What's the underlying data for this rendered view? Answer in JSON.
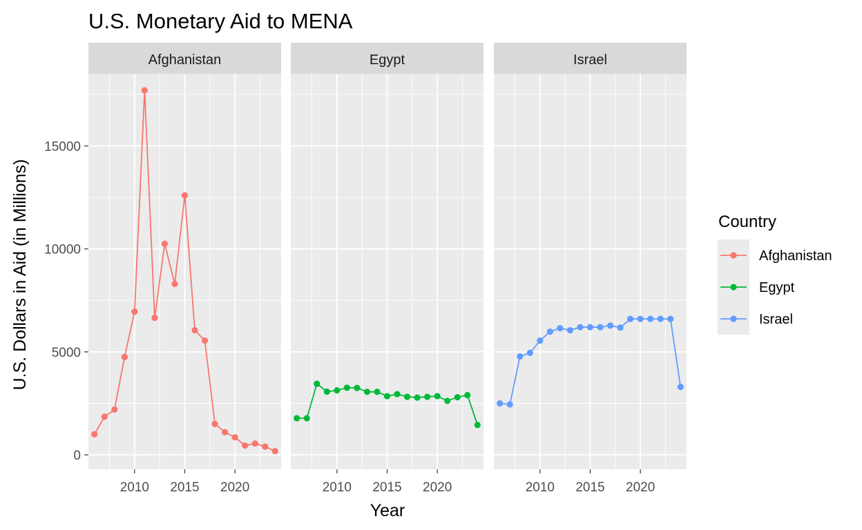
{
  "chart_data": {
    "type": "line",
    "title": "U.S. Monetary Aid to MENA",
    "xlabel": "Year",
    "ylabel": "U.S. Dollars in Aid (in Millions)",
    "xlim": [
      2005.4,
      2024.6
    ],
    "ylim": [
      -700,
      18500
    ],
    "x_ticks": [
      2010,
      2015,
      2020
    ],
    "x_tick_labels": [
      "2010",
      "2015",
      "2020"
    ],
    "y_ticks": [
      0,
      5000,
      10000,
      15000
    ],
    "y_tick_labels": [
      "0",
      "5000",
      "10000",
      "15000"
    ],
    "grid": true,
    "legend": {
      "title": "Country",
      "position": "right"
    },
    "facets": [
      "Afghanistan",
      "Egypt",
      "Israel"
    ],
    "series": [
      {
        "name": "Afghanistan",
        "color": "#F8766D",
        "x": [
          2006,
          2007,
          2008,
          2009,
          2010,
          2011,
          2012,
          2013,
          2014,
          2015,
          2016,
          2017,
          2018,
          2019,
          2020,
          2021,
          2022,
          2023,
          2024
        ],
        "values": [
          1000,
          1850,
          2200,
          4750,
          6950,
          17700,
          6650,
          10250,
          8300,
          12600,
          6050,
          5550,
          1500,
          1100,
          850,
          450,
          550,
          400,
          180
        ]
      },
      {
        "name": "Egypt",
        "color": "#00BA38",
        "x": [
          2006,
          2007,
          2008,
          2009,
          2010,
          2011,
          2012,
          2013,
          2014,
          2015,
          2016,
          2017,
          2018,
          2019,
          2020,
          2021,
          2022,
          2023,
          2024
        ],
        "values": [
          1780,
          1780,
          3450,
          3070,
          3130,
          3260,
          3250,
          3060,
          3060,
          2850,
          2950,
          2820,
          2780,
          2820,
          2850,
          2620,
          2800,
          2900,
          1450
        ]
      },
      {
        "name": "Israel",
        "color": "#619CFF",
        "x": [
          2006,
          2007,
          2008,
          2009,
          2010,
          2011,
          2012,
          2013,
          2014,
          2015,
          2016,
          2017,
          2018,
          2019,
          2020,
          2021,
          2022,
          2023,
          2024
        ],
        "values": [
          2500,
          2450,
          4780,
          4950,
          5550,
          5980,
          6150,
          6050,
          6200,
          6200,
          6200,
          6280,
          6180,
          6600,
          6600,
          6600,
          6600,
          6600,
          3300
        ]
      }
    ]
  }
}
